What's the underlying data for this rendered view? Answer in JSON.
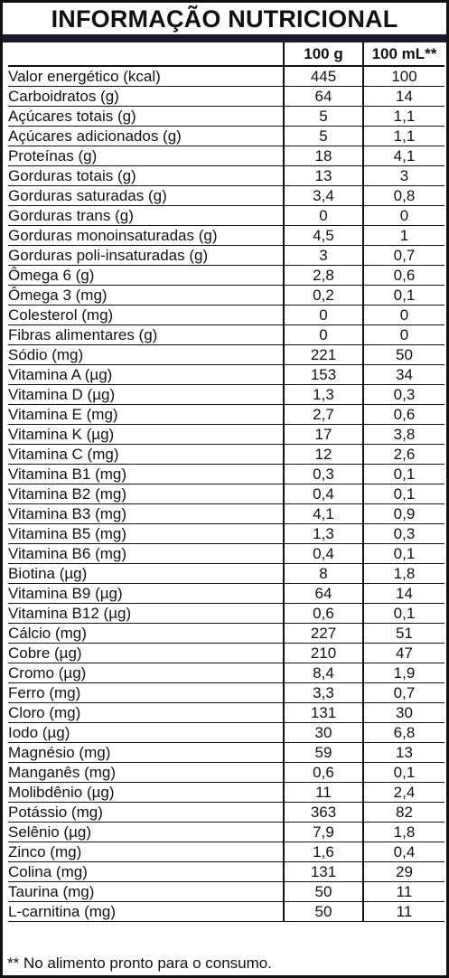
{
  "title": "INFORMAÇÃO NUTRICIONAL",
  "columns": [
    "",
    "100 g",
    "100 mL**"
  ],
  "rows": [
    {
      "name": "Valor energético (kcal)",
      "indent": 0,
      "v100g": "445",
      "v100ml": "100"
    },
    {
      "name": "Carboidratos (g)",
      "indent": 0,
      "v100g": "64",
      "v100ml": "14"
    },
    {
      "name": "Açúcares totais (g)",
      "indent": 1,
      "v100g": "5",
      "v100ml": "1,1"
    },
    {
      "name": "Açúcares adicionados (g)",
      "indent": 2,
      "v100g": "5",
      "v100ml": "1,1"
    },
    {
      "name": "Proteínas (g)",
      "indent": 0,
      "v100g": "18",
      "v100ml": "4,1"
    },
    {
      "name": "Gorduras totais (g)",
      "indent": 0,
      "v100g": "13",
      "v100ml": "3"
    },
    {
      "name": "Gorduras saturadas (g)",
      "indent": 1,
      "v100g": "3,4",
      "v100ml": "0,8"
    },
    {
      "name": "Gorduras trans (g)",
      "indent": 1,
      "v100g": "0",
      "v100ml": "0"
    },
    {
      "name": "Gorduras monoinsaturadas (g)",
      "indent": 1,
      "v100g": "4,5",
      "v100ml": "1"
    },
    {
      "name": "Gorduras poli-insaturadas (g)",
      "indent": 1,
      "v100g": "3",
      "v100ml": "0,7"
    },
    {
      "name": "Ômega 6 (g)",
      "indent": 3,
      "v100g": "2,8",
      "v100ml": "0,6"
    },
    {
      "name": "Ômega 3 (mg)",
      "indent": 3,
      "v100g": "0,2",
      "v100ml": "0,1"
    },
    {
      "name": "Colesterol (mg)",
      "indent": 1,
      "v100g": "0",
      "v100ml": "0"
    },
    {
      "name": "Fibras alimentares (g)",
      "indent": 0,
      "v100g": "0",
      "v100ml": "0"
    },
    {
      "name": "Sódio (mg)",
      "indent": 0,
      "v100g": "221",
      "v100ml": "50"
    },
    {
      "name": "Vitamina A (µg)",
      "indent": 0,
      "v100g": "153",
      "v100ml": "34"
    },
    {
      "name": "Vitamina D (µg)",
      "indent": 0,
      "v100g": "1,3",
      "v100ml": "0,3"
    },
    {
      "name": "Vitamina E (mg)",
      "indent": 0,
      "v100g": "2,7",
      "v100ml": "0,6"
    },
    {
      "name": "Vitamina K (µg)",
      "indent": 0,
      "v100g": "17",
      "v100ml": "3,8"
    },
    {
      "name": "Vitamina C (mg)",
      "indent": 0,
      "v100g": "12",
      "v100ml": "2,6"
    },
    {
      "name": "Vitamina B1 (mg)",
      "indent": 0,
      "v100g": "0,3",
      "v100ml": "0,1"
    },
    {
      "name": "Vitamina B2 (mg)",
      "indent": 0,
      "v100g": "0,4",
      "v100ml": "0,1"
    },
    {
      "name": "Vitamina B3 (mg)",
      "indent": 0,
      "v100g": "4,1",
      "v100ml": "0,9"
    },
    {
      "name": "Vitamina B5 (mg)",
      "indent": 0,
      "v100g": "1,3",
      "v100ml": "0,3"
    },
    {
      "name": "Vitamina B6 (mg)",
      "indent": 0,
      "v100g": "0,4",
      "v100ml": "0,1"
    },
    {
      "name": "Biotina (µg)",
      "indent": 0,
      "v100g": "8",
      "v100ml": "1,8"
    },
    {
      "name": "Vitamina B9 (µg)",
      "indent": 0,
      "v100g": "64",
      "v100ml": "14"
    },
    {
      "name": "Vitamina B12 (µg)",
      "indent": 0,
      "v100g": "0,6",
      "v100ml": "0,1"
    },
    {
      "name": "Cálcio (mg)",
      "indent": 0,
      "v100g": "227",
      "v100ml": "51"
    },
    {
      "name": "Cobre (µg)",
      "indent": 0,
      "v100g": "210",
      "v100ml": "47"
    },
    {
      "name": "Cromo (µg)",
      "indent": 0,
      "v100g": "8,4",
      "v100ml": "1,9"
    },
    {
      "name": "Ferro (mg)",
      "indent": 0,
      "v100g": "3,3",
      "v100ml": "0,7"
    },
    {
      "name": "Cloro (mg)",
      "indent": 0,
      "v100g": "131",
      "v100ml": "30"
    },
    {
      "name": "Iodo (µg)",
      "indent": 0,
      "v100g": "30",
      "v100ml": "6,8"
    },
    {
      "name": "Magnésio (mg)",
      "indent": 0,
      "v100g": "59",
      "v100ml": "13"
    },
    {
      "name": "Manganês (mg)",
      "indent": 0,
      "v100g": "0,6",
      "v100ml": "0,1"
    },
    {
      "name": "Molibdênio (µg)",
      "indent": 0,
      "v100g": "11",
      "v100ml": "2,4"
    },
    {
      "name": "Potássio (mg)",
      "indent": 0,
      "v100g": "363",
      "v100ml": "82"
    },
    {
      "name": "Selênio (µg)",
      "indent": 0,
      "v100g": "7,9",
      "v100ml": "1,8"
    },
    {
      "name": "Zinco (mg)",
      "indent": 0,
      "v100g": "1,6",
      "v100ml": "0,4"
    },
    {
      "name": "Colina (mg)",
      "indent": 0,
      "v100g": "131",
      "v100ml": "29"
    },
    {
      "name": "Taurina (mg)",
      "indent": 0,
      "v100g": "50",
      "v100ml": "11"
    },
    {
      "name": "L-carnitina (mg)",
      "indent": 0,
      "v100g": "50",
      "v100ml": "11"
    }
  ],
  "footnote": "** No alimento pronto para o consumo."
}
